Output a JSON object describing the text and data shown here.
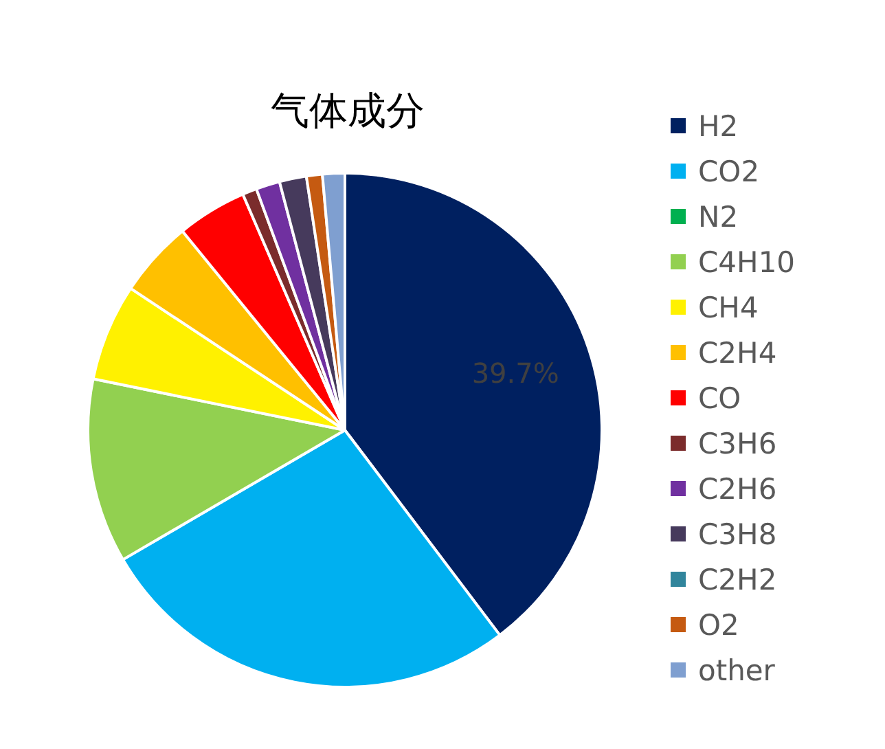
{
  "chart_data": {
    "type": "pie",
    "title": "气体成分",
    "categories": [
      "H2",
      "CO2",
      "N2",
      "C4H10",
      "CH4",
      "C2H4",
      "CO",
      "C3H6",
      "C2H6",
      "C3H8",
      "C2H2",
      "O2",
      "other"
    ],
    "values": [
      39.7,
      26.9,
      0,
      11.6,
      6.1,
      4.8,
      4.4,
      0.9,
      1.5,
      1.7,
      0,
      1.0,
      1.4
    ],
    "colors": [
      "#002060",
      "#00b0f0",
      "#00b050",
      "#92d050",
      "#fff100",
      "#ffc000",
      "#ff0000",
      "#7b2c2c",
      "#7030a0",
      "#463a5c",
      "#31859c",
      "#c55a11",
      "#7f9fd0"
    ],
    "value_labels": [
      "39.7%",
      null,
      null,
      null,
      null,
      null,
      null,
      null,
      null,
      null,
      null,
      null,
      null
    ],
    "legend": "right"
  }
}
